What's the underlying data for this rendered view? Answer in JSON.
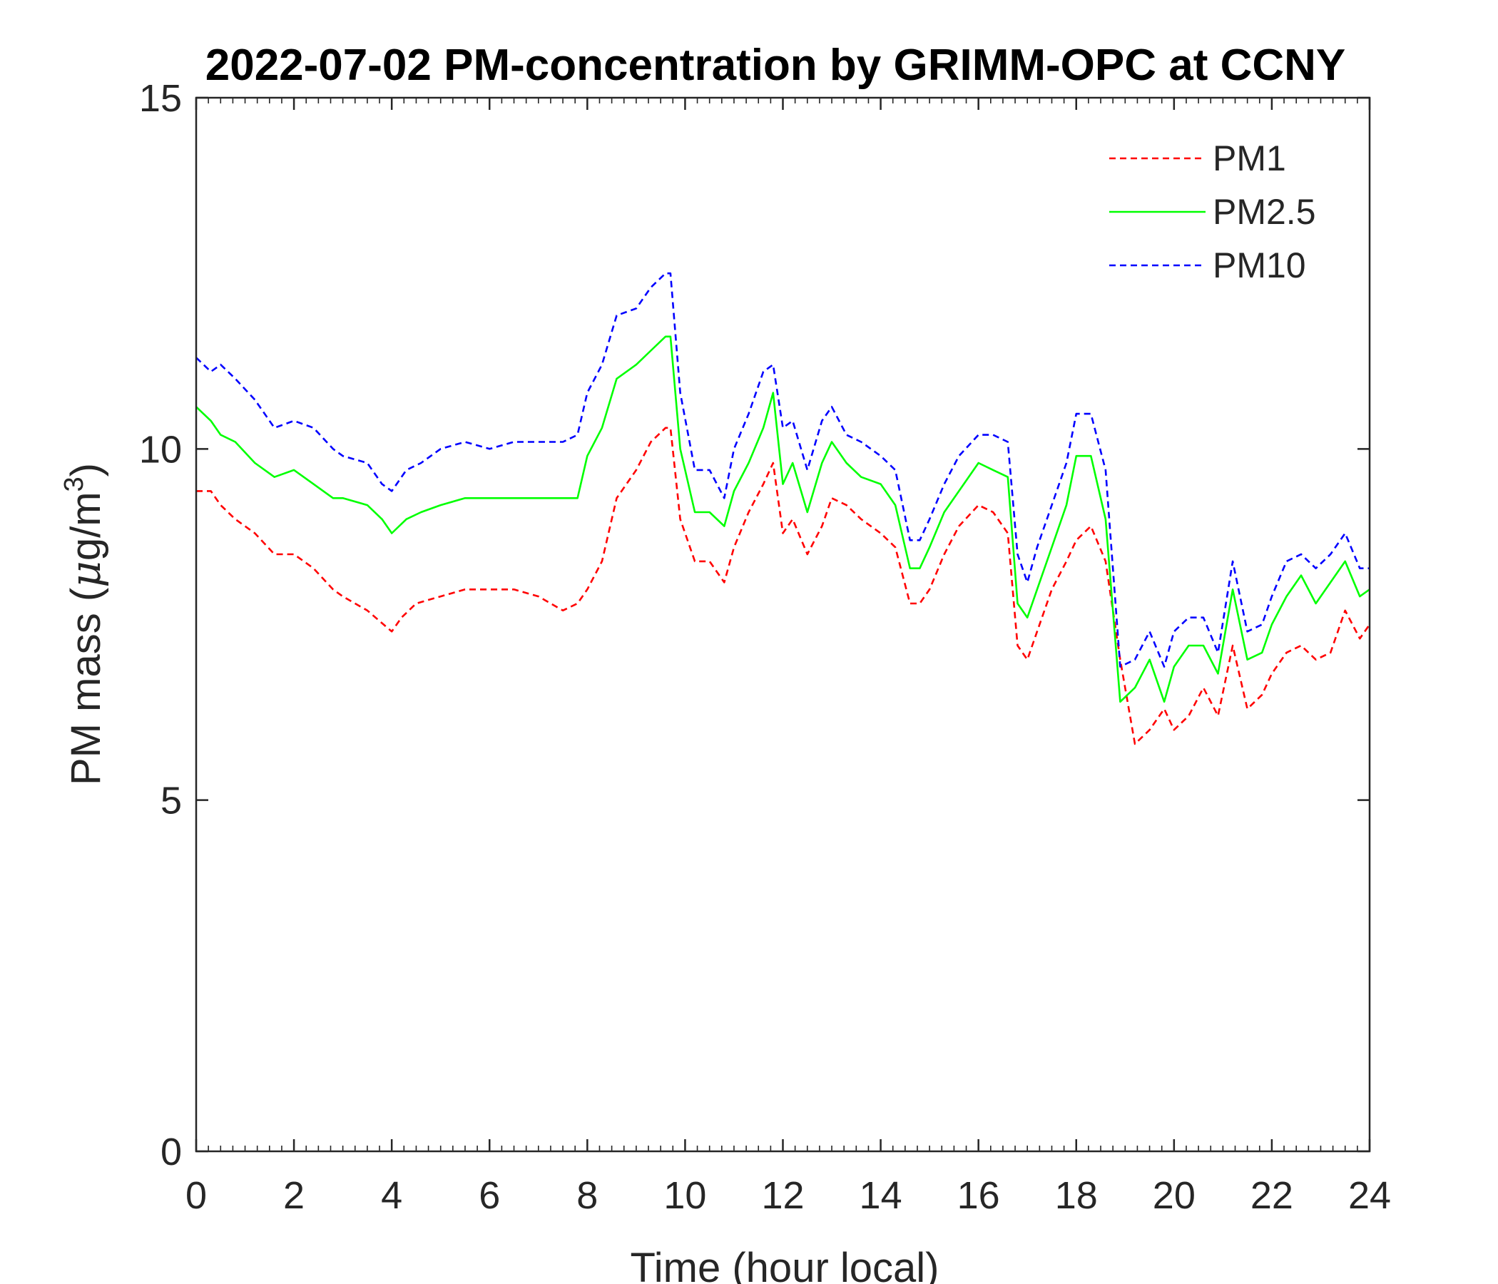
{
  "chart_data": {
    "type": "line",
    "title": "2022-07-02 PM-concentration by GRIMM-OPC at CCNY",
    "xlabel": "Time (hour local)",
    "ylabel_prefix": "PM mass (",
    "ylabel_mu": "μ",
    "ylabel_unit": "g/m",
    "ylabel_sup": "3",
    "ylabel_suffix": ")",
    "xlim": [
      0,
      24
    ],
    "ylim": [
      0,
      15
    ],
    "xticks": [
      "0",
      "2",
      "4",
      "6",
      "8",
      "10",
      "12",
      "14",
      "16",
      "18",
      "20",
      "22",
      "24"
    ],
    "yticks": [
      "0",
      "5",
      "10",
      "15"
    ],
    "grid": false,
    "legend_position": "top-right",
    "series": [
      {
        "name": "PM1",
        "color": "#ff0000",
        "style": "dashed",
        "x": [
          0,
          0.3,
          0.5,
          0.8,
          1.2,
          1.6,
          2.0,
          2.4,
          2.8,
          3.0,
          3.5,
          4.0,
          4.2,
          4.5,
          5.0,
          5.5,
          6.0,
          6.5,
          7.0,
          7.5,
          7.8,
          8.0,
          8.3,
          8.6,
          9.0,
          9.3,
          9.6,
          9.7,
          9.9,
          10.2,
          10.5,
          10.8,
          11.0,
          11.3,
          11.6,
          11.8,
          12.0,
          12.2,
          12.5,
          12.8,
          13.0,
          13.3,
          13.6,
          14.0,
          14.3,
          14.6,
          14.8,
          15.0,
          15.3,
          15.6,
          16.0,
          16.3,
          16.6,
          16.8,
          17.0,
          17.2,
          17.5,
          17.8,
          18.0,
          18.3,
          18.6,
          18.9,
          19.2,
          19.5,
          19.8,
          20.0,
          20.3,
          20.6,
          20.9,
          21.2,
          21.5,
          21.8,
          22.0,
          22.3,
          22.6,
          22.9,
          23.2,
          23.5,
          23.8,
          24.0
        ],
        "y": [
          9.4,
          9.4,
          9.2,
          9.0,
          8.8,
          8.5,
          8.5,
          8.3,
          8.0,
          7.9,
          7.7,
          7.4,
          7.6,
          7.8,
          7.9,
          8.0,
          8.0,
          8.0,
          7.9,
          7.7,
          7.8,
          8.0,
          8.4,
          9.3,
          9.7,
          10.1,
          10.3,
          10.3,
          9.0,
          8.4,
          8.4,
          8.1,
          8.6,
          9.1,
          9.5,
          9.8,
          8.8,
          9.0,
          8.5,
          8.9,
          9.3,
          9.2,
          9.0,
          8.8,
          8.6,
          7.8,
          7.8,
          8.0,
          8.5,
          8.9,
          9.2,
          9.1,
          8.8,
          7.2,
          7.0,
          7.4,
          8.0,
          8.4,
          8.7,
          8.9,
          8.4,
          7.0,
          5.8,
          6.0,
          6.3,
          6.0,
          6.2,
          6.6,
          6.2,
          7.2,
          6.3,
          6.5,
          6.8,
          7.1,
          7.2,
          7.0,
          7.1,
          7.7,
          7.3,
          7.5
        ]
      },
      {
        "name": "PM2.5",
        "color": "#00ff00",
        "style": "solid",
        "x": [
          0,
          0.3,
          0.5,
          0.8,
          1.2,
          1.6,
          2.0,
          2.4,
          2.8,
          3.0,
          3.5,
          3.8,
          4.0,
          4.3,
          4.6,
          5.0,
          5.5,
          6.0,
          6.5,
          7.0,
          7.5,
          7.8,
          8.0,
          8.3,
          8.6,
          9.0,
          9.3,
          9.6,
          9.7,
          9.9,
          10.2,
          10.5,
          10.8,
          11.0,
          11.3,
          11.6,
          11.8,
          12.0,
          12.2,
          12.5,
          12.8,
          13.0,
          13.3,
          13.6,
          14.0,
          14.3,
          14.6,
          14.8,
          15.0,
          15.3,
          15.6,
          16.0,
          16.3,
          16.6,
          16.8,
          17.0,
          17.2,
          17.5,
          17.8,
          18.0,
          18.3,
          18.6,
          18.9,
          19.2,
          19.5,
          19.8,
          20.0,
          20.3,
          20.6,
          20.9,
          21.2,
          21.5,
          21.8,
          22.0,
          22.3,
          22.6,
          22.9,
          23.2,
          23.5,
          23.8,
          24.0
        ],
        "y": [
          10.6,
          10.4,
          10.2,
          10.1,
          9.8,
          9.6,
          9.7,
          9.5,
          9.3,
          9.3,
          9.2,
          9.0,
          8.8,
          9.0,
          9.1,
          9.2,
          9.3,
          9.3,
          9.3,
          9.3,
          9.3,
          9.3,
          9.9,
          10.3,
          11.0,
          11.2,
          11.4,
          11.6,
          11.6,
          10.0,
          9.1,
          9.1,
          8.9,
          9.4,
          9.8,
          10.3,
          10.8,
          9.5,
          9.8,
          9.1,
          9.8,
          10.1,
          9.8,
          9.6,
          9.5,
          9.2,
          8.3,
          8.3,
          8.6,
          9.1,
          9.4,
          9.8,
          9.7,
          9.6,
          7.8,
          7.6,
          8.0,
          8.6,
          9.2,
          9.9,
          9.9,
          9.0,
          6.4,
          6.6,
          7.0,
          6.4,
          6.9,
          7.2,
          7.2,
          6.8,
          8.0,
          7.0,
          7.1,
          7.5,
          7.9,
          8.2,
          7.8,
          8.1,
          8.4,
          7.9,
          8.0
        ]
      },
      {
        "name": "PM10",
        "color": "#0000ff",
        "style": "dashed",
        "x": [
          0,
          0.3,
          0.5,
          0.8,
          1.2,
          1.6,
          2.0,
          2.4,
          2.8,
          3.0,
          3.5,
          3.8,
          4.0,
          4.3,
          4.6,
          5.0,
          5.5,
          6.0,
          6.5,
          7.0,
          7.5,
          7.8,
          8.0,
          8.3,
          8.6,
          9.0,
          9.3,
          9.6,
          9.7,
          9.9,
          10.2,
          10.5,
          10.8,
          11.0,
          11.3,
          11.6,
          11.8,
          12.0,
          12.2,
          12.5,
          12.8,
          13.0,
          13.3,
          13.6,
          14.0,
          14.3,
          14.6,
          14.8,
          15.0,
          15.3,
          15.6,
          16.0,
          16.3,
          16.6,
          16.8,
          17.0,
          17.2,
          17.5,
          17.8,
          18.0,
          18.3,
          18.6,
          18.9,
          19.2,
          19.5,
          19.8,
          20.0,
          20.3,
          20.6,
          20.9,
          21.2,
          21.5,
          21.8,
          22.0,
          22.3,
          22.6,
          22.9,
          23.2,
          23.5,
          23.8,
          24.0
        ],
        "y": [
          11.3,
          11.1,
          11.2,
          11.0,
          10.7,
          10.3,
          10.4,
          10.3,
          10.0,
          9.9,
          9.8,
          9.5,
          9.4,
          9.7,
          9.8,
          10.0,
          10.1,
          10.0,
          10.1,
          10.1,
          10.1,
          10.2,
          10.8,
          11.2,
          11.9,
          12.0,
          12.3,
          12.5,
          12.5,
          10.8,
          9.7,
          9.7,
          9.3,
          10.0,
          10.5,
          11.1,
          11.2,
          10.3,
          10.4,
          9.7,
          10.4,
          10.6,
          10.2,
          10.1,
          9.9,
          9.7,
          8.7,
          8.7,
          9.0,
          9.5,
          9.9,
          10.2,
          10.2,
          10.1,
          8.5,
          8.1,
          8.6,
          9.2,
          9.8,
          10.5,
          10.5,
          9.7,
          6.9,
          7.0,
          7.4,
          6.9,
          7.4,
          7.6,
          7.6,
          7.1,
          8.4,
          7.4,
          7.5,
          7.9,
          8.4,
          8.5,
          8.3,
          8.5,
          8.8,
          8.3,
          8.3
        ]
      }
    ]
  }
}
